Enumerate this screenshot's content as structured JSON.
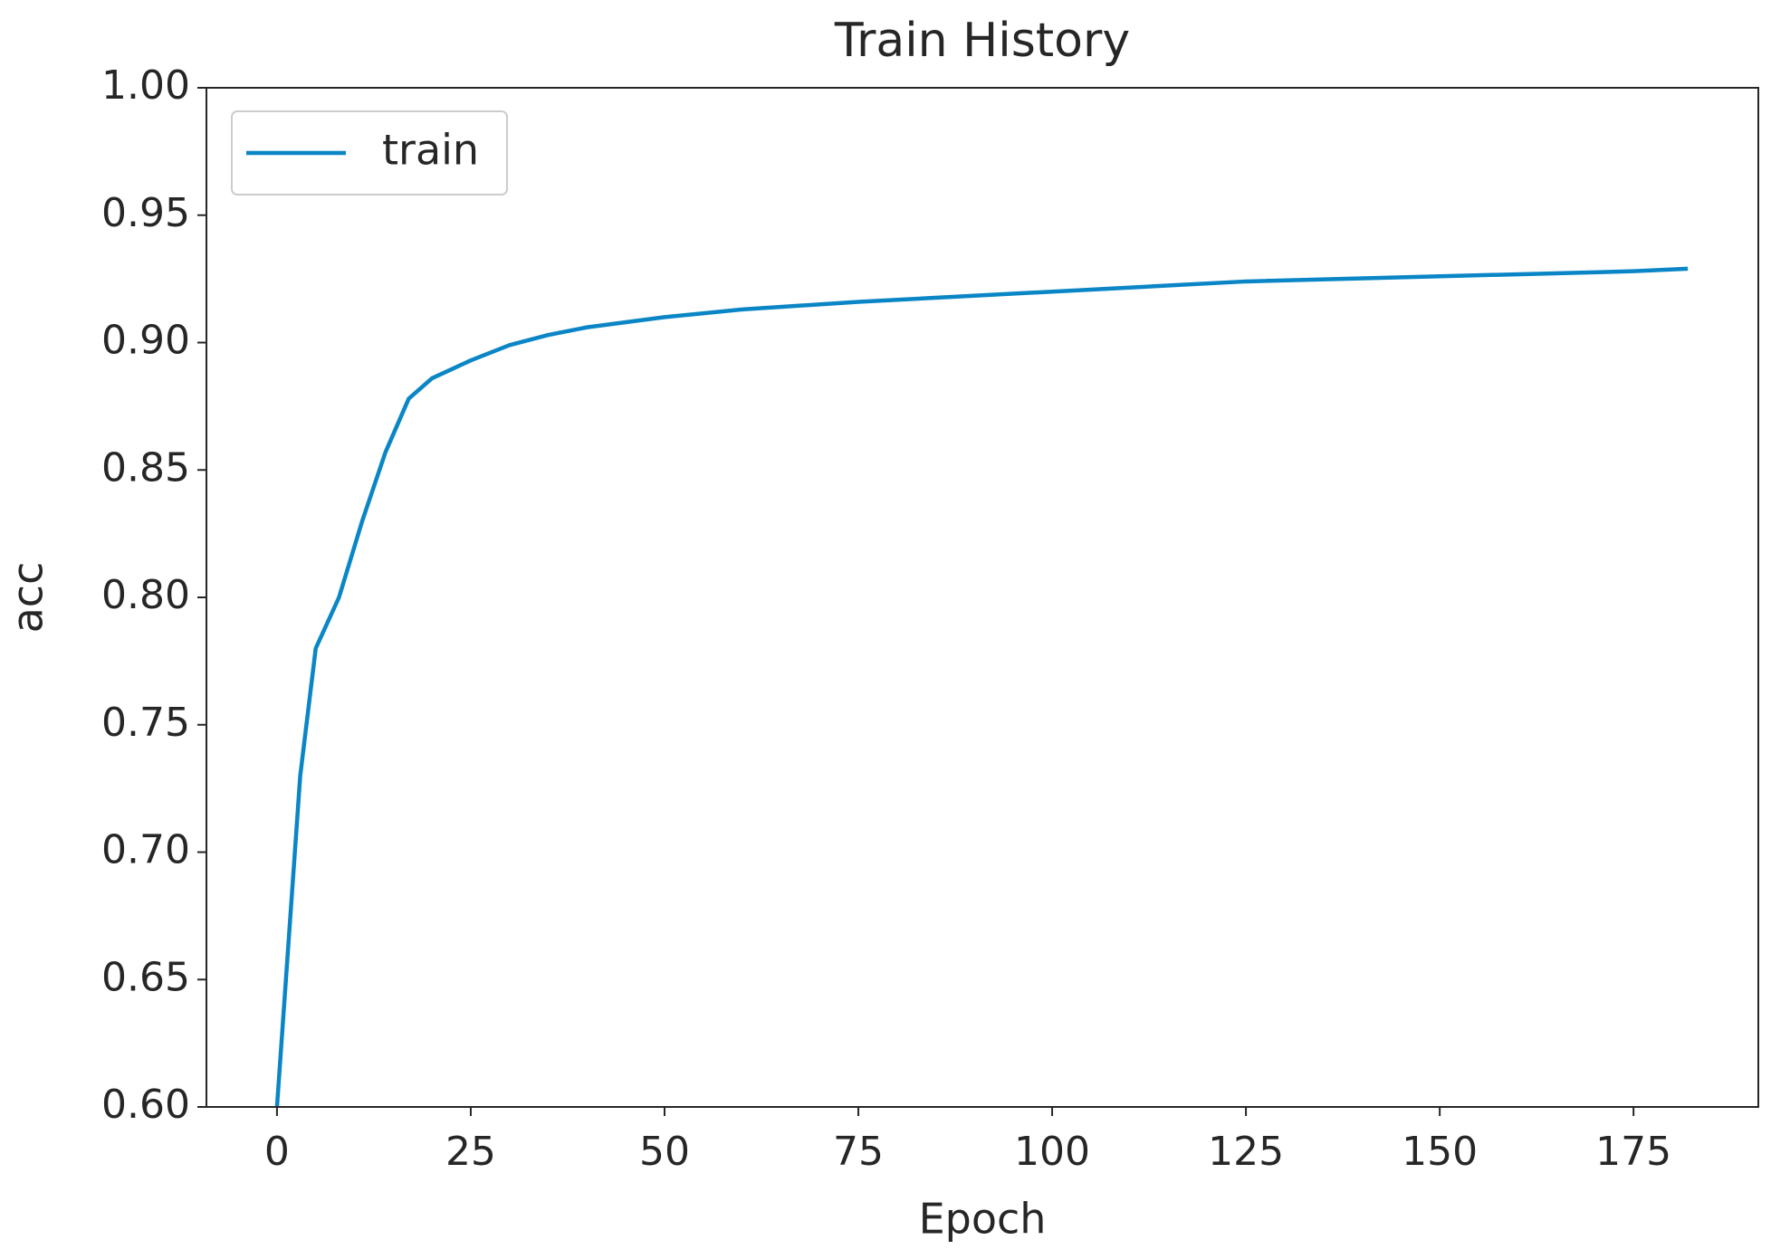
{
  "chart_data": {
    "type": "line",
    "title": "Train History",
    "x_label": "Epoch",
    "y_label": "acc",
    "series": [
      {
        "name": "train",
        "color": "#0a86c6",
        "x": [
          0,
          3,
          5,
          8,
          11,
          14,
          17,
          20,
          25,
          30,
          35,
          40,
          50,
          60,
          75,
          100,
          125,
          150,
          175,
          182
        ],
        "values": [
          0.6,
          0.73,
          0.78,
          0.8,
          0.83,
          0.857,
          0.878,
          0.886,
          0.893,
          0.899,
          0.903,
          0.906,
          0.91,
          0.913,
          0.916,
          0.92,
          0.924,
          0.926,
          0.928,
          0.929
        ]
      }
    ],
    "xlim": [
      -9.1,
      191.1
    ],
    "xticks": [
      0,
      25,
      50,
      75,
      100,
      125,
      150,
      175
    ],
    "ylim": [
      0.6,
      1.0
    ],
    "yticks": [
      {
        "value": 0.6,
        "label": "0.60"
      },
      0.65,
      {
        "value": 0.7,
        "label": "0.70"
      },
      0.75,
      {
        "value": 0.8,
        "label": "0.80"
      },
      0.85,
      {
        "value": 0.9,
        "label": "0.90"
      },
      0.95,
      {
        "value": 1.0,
        "label": "1.00"
      }
    ],
    "grid": false,
    "legend": "upper left"
  }
}
